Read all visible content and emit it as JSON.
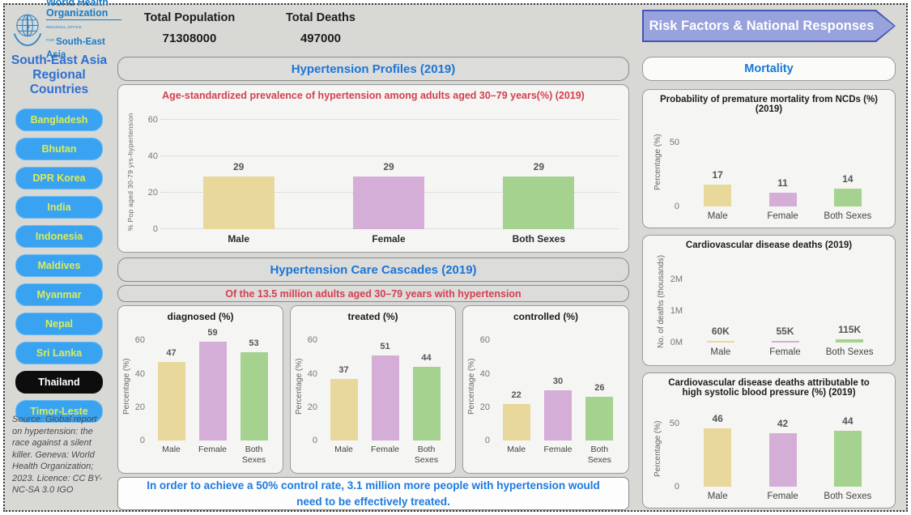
{
  "header": {
    "logo": {
      "line1": "World Health",
      "line2": "Organization",
      "office": "REGIONAL OFFICE FOR",
      "region": "South-East Asia"
    },
    "total_population": {
      "label": "Total Population",
      "value": "71308000"
    },
    "total_deaths": {
      "label": "Total Deaths",
      "value": "497000"
    },
    "risk_factors_button": "Risk Factors & National Responses"
  },
  "sidebar": {
    "title": "South-East Asia Regional Countries",
    "countries": [
      {
        "label": "Bangladesh",
        "selected": false
      },
      {
        "label": "Bhutan",
        "selected": false
      },
      {
        "label": "DPR Korea",
        "selected": false
      },
      {
        "label": "India",
        "selected": false
      },
      {
        "label": "Indonesia",
        "selected": false
      },
      {
        "label": "Maldives",
        "selected": false
      },
      {
        "label": "Myanmar",
        "selected": false
      },
      {
        "label": "Nepal",
        "selected": false
      },
      {
        "label": "Sri Lanka",
        "selected": false
      },
      {
        "label": "Thailand",
        "selected": true
      },
      {
        "label": "Timor-Leste",
        "selected": false
      }
    ],
    "source": "Source: Global report on hypertension: the race against a silent killer. Geneva: World Health Organization; 2023. Licence: CC BY-NC-SA 3.0 IGO"
  },
  "main": {
    "profiles_header": "Hypertension Profiles (2019)",
    "cascades_header": "Hypertension Care Cascades (2019)",
    "cascades_subtitle": "Of the 13.5 million adults aged 30–79 years with hypertension",
    "note": "In order to achieve a 50% control rate, 3.1 million more people with hypertension would need to be effectively treated."
  },
  "mortality_header": "Mortality",
  "palette": {
    "accent_blue": "#1b76d6",
    "title_red": "#d4404e",
    "who_blue": "#1a7ac4",
    "country_pill_blue": "#3aa3f1",
    "country_text_green": "#dbec55",
    "selected_pill_black": "#0d0d0d",
    "arrow_fill": "#98a2dc",
    "arrow_border": "#4456b8",
    "bar_male": "#e9d89b",
    "bar_female": "#d5aed8",
    "bar_both_sexes": "#a6d28f"
  },
  "chart_data": [
    {
      "id": "prevalence",
      "type": "bar",
      "title": "Age-standardized prevalence of hypertension among adults aged 30–79 years(%) (2019)",
      "categories": [
        "Male",
        "Female",
        "Both Sexes"
      ],
      "values": [
        29,
        29,
        29
      ],
      "ylabel": "% Pop aged 30-79 yrs-hypertension",
      "ytick_values": [
        0,
        20,
        40,
        60
      ],
      "ytick_labels": [
        "0",
        "20",
        "40",
        "60"
      ],
      "ylim": [
        0,
        63
      ],
      "grid": true,
      "legend": "none"
    },
    {
      "id": "diagnosed",
      "type": "bar",
      "title": "diagnosed (%)",
      "categories": [
        "Male",
        "Female",
        "Both Sexes"
      ],
      "values": [
        47,
        59,
        53
      ],
      "ylabel": "Percentage (%)",
      "ytick_values": [
        0,
        20,
        40,
        60
      ],
      "ytick_labels": [
        "0",
        "20",
        "40",
        "60"
      ],
      "ylim": [
        0,
        65
      ],
      "grid": false
    },
    {
      "id": "treated",
      "type": "bar",
      "title": "treated (%)",
      "categories": [
        "Male",
        "Female",
        "Both Sexes"
      ],
      "values": [
        37,
        51,
        44
      ],
      "ylabel": "Percentage (%)",
      "ytick_values": [
        0,
        20,
        40,
        60
      ],
      "ytick_labels": [
        "0",
        "20",
        "40",
        "60"
      ],
      "ylim": [
        0,
        65
      ],
      "grid": false
    },
    {
      "id": "controlled",
      "type": "bar",
      "title": "controlled (%)",
      "categories": [
        "Male",
        "Female",
        "Both Sexes"
      ],
      "values": [
        22,
        30,
        26
      ],
      "ylabel": "Percentage (%)",
      "ytick_values": [
        0,
        20,
        40,
        60
      ],
      "ytick_labels": [
        "0",
        "20",
        "40",
        "60"
      ],
      "ylim": [
        0,
        65
      ],
      "grid": false
    },
    {
      "id": "ncd_mortality",
      "type": "bar",
      "title": "Probability of premature mortality from NCDs (%) (2019)",
      "categories": [
        "Male",
        "Female",
        "Both Sexes"
      ],
      "values": [
        17,
        11,
        14
      ],
      "ylabel": "Percentage (%)",
      "ytick_values": [
        0,
        50
      ],
      "ytick_labels": [
        "0",
        "50"
      ],
      "ylim": [
        0,
        70
      ],
      "grid": false
    },
    {
      "id": "cvd_deaths",
      "type": "bar",
      "title": "Cardiovascular disease deaths (2019)",
      "categories": [
        "Male",
        "Female",
        "Both Sexes"
      ],
      "values": [
        60,
        55,
        115
      ],
      "value_labels": [
        "60K",
        "55K",
        "115K"
      ],
      "units": "thousands",
      "ylabel": "No. of deaths (thousands)",
      "ytick_values": [
        0,
        1000,
        2000
      ],
      "ytick_labels": [
        "0M",
        "1M",
        "2M"
      ],
      "ylim": [
        0,
        2600
      ],
      "grid": false
    },
    {
      "id": "cvd_hsbp",
      "type": "bar",
      "title": "Cardiovascular disease deaths attributable to high systolic blood pressure (%) (2019)",
      "categories": [
        "Male",
        "Female",
        "Both Sexes"
      ],
      "values": [
        46,
        42,
        44
      ],
      "ylabel": "Percentage (%)",
      "ytick_values": [
        0,
        50
      ],
      "ytick_labels": [
        "0",
        "50"
      ],
      "ylim": [
        0,
        60
      ],
      "grid": false
    }
  ]
}
